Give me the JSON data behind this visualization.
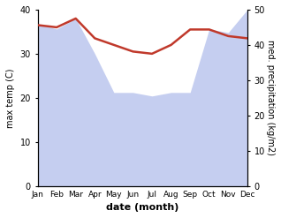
{
  "months": [
    "Jan",
    "Feb",
    "Mar",
    "Apr",
    "May",
    "Jun",
    "Jul",
    "Aug",
    "Sep",
    "Oct",
    "Nov",
    "Dec"
  ],
  "max_temp": [
    36.5,
    36.0,
    38.0,
    33.5,
    32.0,
    30.5,
    30.0,
    32.0,
    35.5,
    35.5,
    34.0,
    33.5
  ],
  "precipitation": [
    46.0,
    44.5,
    47.5,
    37.5,
    26.5,
    26.5,
    25.5,
    26.5,
    26.5,
    44.5,
    43.5,
    50.0
  ],
  "temp_color": "#c0392b",
  "precip_fill_color": "#c5cef0",
  "temp_ylim": [
    0,
    40
  ],
  "precip_ylim": [
    0,
    50
  ],
  "xlabel": "date (month)",
  "ylabel_left": "max temp (C)",
  "ylabel_right": "med. precipitation (kg/m2)",
  "temp_yticks": [
    0,
    10,
    20,
    30,
    40
  ],
  "precip_yticks": [
    0,
    10,
    20,
    30,
    40,
    50
  ]
}
